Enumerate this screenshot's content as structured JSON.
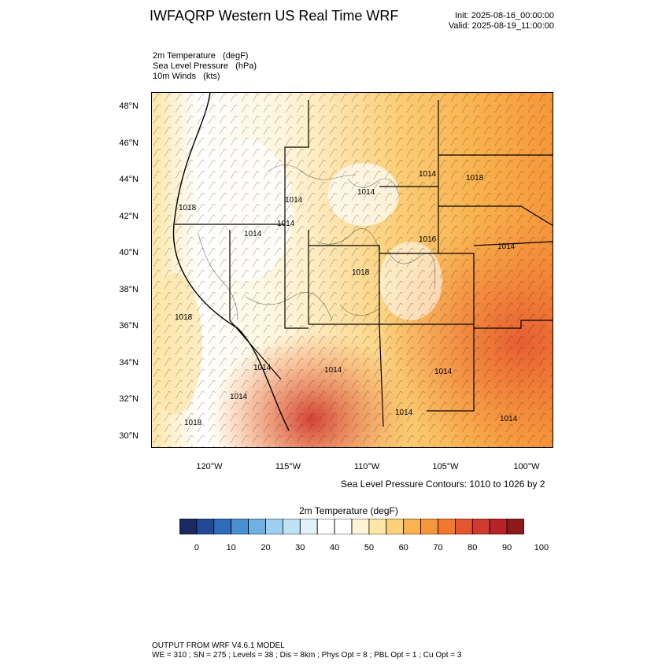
{
  "header": {
    "title": "IWFAQRP Western US Real Time WRF",
    "init": "Init: 2025-08-16_00:00:00",
    "valid": "Valid: 2025-08-19_11:00:00"
  },
  "fields": [
    "2m Temperature   (degF)",
    "Sea Level Pressure   (hPa)",
    "10m Winds   (kts)"
  ],
  "map": {
    "lat_labels": [
      "48°N",
      "46°N",
      "44°N",
      "42°N",
      "40°N",
      "38°N",
      "36°N",
      "34°N",
      "32°N",
      "30°N"
    ],
    "lon_labels": [
      "120°W",
      "115°W",
      "110°W",
      "105°W",
      "100°W"
    ],
    "slp_labels": [
      "1018",
      "1014",
      "1014",
      "1014",
      "1016",
      "1018",
      "1014",
      "1014",
      "1014",
      "1014",
      "1014",
      "1014",
      "1018",
      "1018",
      "1014",
      "1014",
      "1014",
      "1018"
    ],
    "contour_note": "Sea Level Pressure Contours: 1010 to 1026 by 2"
  },
  "colorbar": {
    "title": "2m Temperature  (degF)",
    "colors": [
      "#1b2a5e",
      "#214a94",
      "#2c6cb8",
      "#4a8fd0",
      "#6fb1e3",
      "#9bd0f0",
      "#bfe2f5",
      "#e0f1fa",
      "#ffffff",
      "#ffffff",
      "#fff4d6",
      "#fde6a6",
      "#fbd07a",
      "#f9b34f",
      "#f6963a",
      "#f2772f",
      "#e55530",
      "#d13a2e",
      "#b82328",
      "#8c1a1a"
    ],
    "labels": [
      "0",
      "10",
      "20",
      "30",
      "40",
      "50",
      "60",
      "70",
      "80",
      "90",
      "100"
    ]
  },
  "footer": {
    "line1": "OUTPUT FROM WRF V4.6.1 MODEL",
    "line2": "WE = 310 ; SN = 275 ; Levels = 38 ; Dis = 8km ; Phys Opt = 8 ; PBL Opt = 1 ; Cu Opt = 3"
  }
}
